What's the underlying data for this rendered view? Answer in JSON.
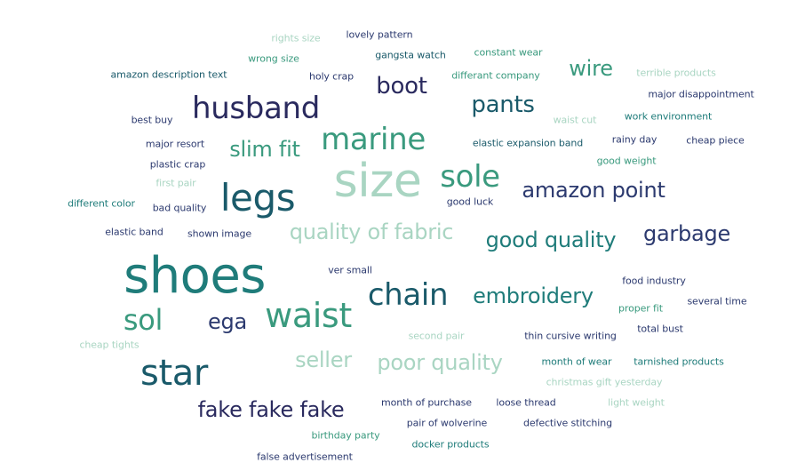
{
  "palette": {
    "navy": "#2a2a5e",
    "indigo": "#2c3a6f",
    "deep_teal": "#1a5a6a",
    "teal": "#1f7c7a",
    "green": "#3a9a7e",
    "light_green": "#7fc2a3",
    "pale": "#a9d5c2"
  },
  "words": [
    {
      "text": "rights size",
      "color": "pale"
    },
    {
      "text": "lovely pattern",
      "color": "indigo"
    },
    {
      "text": "wrong size",
      "color": "green"
    },
    {
      "text": "gangsta watch",
      "color": "deep_teal"
    },
    {
      "text": "constant wear",
      "color": "green"
    },
    {
      "text": "wire",
      "color": "green"
    },
    {
      "text": "amazon description text",
      "color": "deep_teal"
    },
    {
      "text": "holy crap",
      "color": "indigo"
    },
    {
      "text": "boot",
      "color": "navy"
    },
    {
      "text": "differant company",
      "color": "green"
    },
    {
      "text": "terrible products",
      "color": "pale"
    },
    {
      "text": "major disappointment",
      "color": "indigo"
    },
    {
      "text": "husband",
      "color": "navy"
    },
    {
      "text": "pants",
      "color": "deep_teal"
    },
    {
      "text": "best buy",
      "color": "indigo"
    },
    {
      "text": "waist cut",
      "color": "pale"
    },
    {
      "text": "work environment",
      "color": "teal"
    },
    {
      "text": "major resort",
      "color": "indigo"
    },
    {
      "text": "slim fit",
      "color": "green"
    },
    {
      "text": "marine",
      "color": "green"
    },
    {
      "text": "elastic expansion band",
      "color": "deep_teal"
    },
    {
      "text": "rainy day",
      "color": "indigo"
    },
    {
      "text": "cheap piece",
      "color": "indigo"
    },
    {
      "text": "plastic crap",
      "color": "indigo"
    },
    {
      "text": "good weight",
      "color": "green"
    },
    {
      "text": "size",
      "color": "pale"
    },
    {
      "text": "sole",
      "color": "green"
    },
    {
      "text": "first pair",
      "color": "pale"
    },
    {
      "text": "legs",
      "color": "deep_teal"
    },
    {
      "text": "amazon point",
      "color": "indigo"
    },
    {
      "text": "different color",
      "color": "teal"
    },
    {
      "text": "bad quality",
      "color": "indigo"
    },
    {
      "text": "good luck",
      "color": "indigo"
    },
    {
      "text": "elastic band",
      "color": "indigo"
    },
    {
      "text": "shown image",
      "color": "indigo"
    },
    {
      "text": "quality of fabric",
      "color": "pale"
    },
    {
      "text": "good quality",
      "color": "teal"
    },
    {
      "text": "garbage",
      "color": "indigo"
    },
    {
      "text": "shoes",
      "color": "teal"
    },
    {
      "text": "ver small",
      "color": "indigo"
    },
    {
      "text": "chain",
      "color": "deep_teal"
    },
    {
      "text": "embroidery",
      "color": "teal"
    },
    {
      "text": "food industry",
      "color": "indigo"
    },
    {
      "text": "several time",
      "color": "indigo"
    },
    {
      "text": "sol",
      "color": "green"
    },
    {
      "text": "ega",
      "color": "indigo"
    },
    {
      "text": "waist",
      "color": "green"
    },
    {
      "text": "proper fit",
      "color": "green"
    },
    {
      "text": "total bust",
      "color": "indigo"
    },
    {
      "text": "cheap tights",
      "color": "pale"
    },
    {
      "text": "second pair",
      "color": "pale"
    },
    {
      "text": "thin cursive writing",
      "color": "indigo"
    },
    {
      "text": "seller",
      "color": "pale"
    },
    {
      "text": "poor quality",
      "color": "pale"
    },
    {
      "text": "month of wear",
      "color": "teal"
    },
    {
      "text": "tarnished products",
      "color": "teal"
    },
    {
      "text": "star",
      "color": "deep_teal"
    },
    {
      "text": "christmas gift yesterday",
      "color": "pale"
    },
    {
      "text": "fake fake fake",
      "color": "navy"
    },
    {
      "text": "month of purchase",
      "color": "indigo"
    },
    {
      "text": "loose thread",
      "color": "indigo"
    },
    {
      "text": "light weight",
      "color": "pale"
    },
    {
      "text": "pair of wolverine",
      "color": "indigo"
    },
    {
      "text": "defective stitching",
      "color": "indigo"
    },
    {
      "text": "birthday party",
      "color": "green"
    },
    {
      "text": "docker products",
      "color": "teal"
    },
    {
      "text": "false advertisement",
      "color": "indigo"
    }
  ]
}
